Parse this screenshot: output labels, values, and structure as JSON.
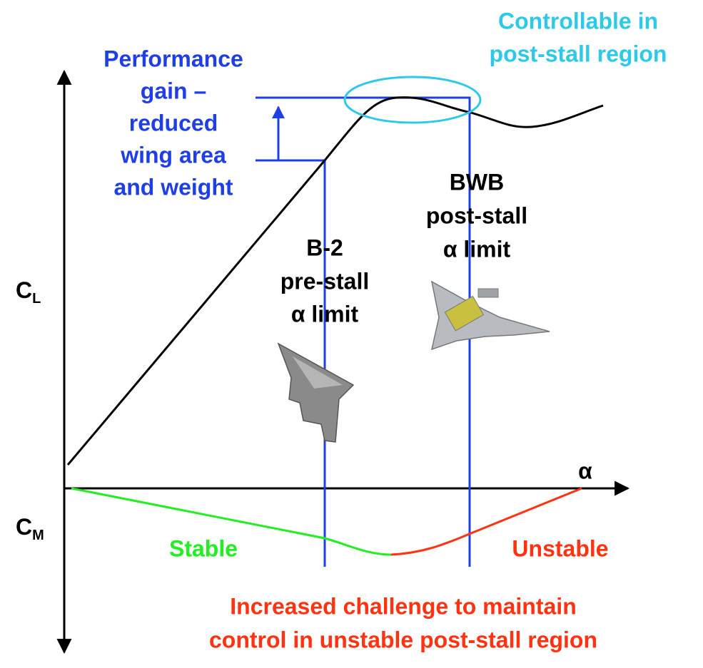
{
  "labels": {
    "controllable": [
      "Controllable in",
      "post-stall region"
    ],
    "performance": [
      "Performance",
      "gain –",
      "reduced",
      "wing area",
      "and weight"
    ],
    "bwb": [
      "BWB",
      "post-stall",
      "α limit"
    ],
    "b2": [
      "B-2",
      "pre-stall",
      "α limit"
    ],
    "stable": "Stable",
    "unstable": "Unstable",
    "challenge": [
      "Increased challenge to maintain",
      "control in unstable post-stall region"
    ]
  },
  "axes": {
    "cl": {
      "main": "C",
      "sub": "L"
    },
    "cm": {
      "main": "C",
      "sub": "M"
    },
    "alpha": "α"
  }
}
